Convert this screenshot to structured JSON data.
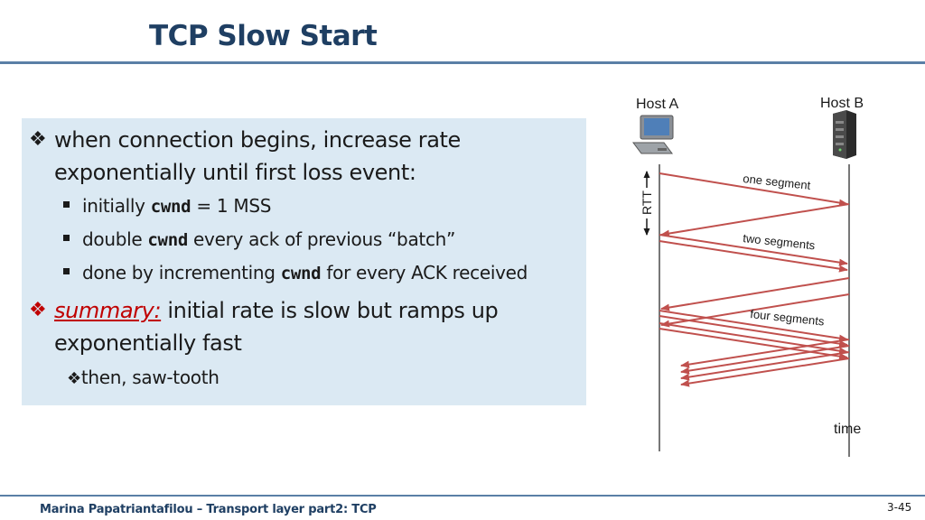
{
  "slide": {
    "title": "TCP Slow Start",
    "footer": "Marina Papatriantafilou –  Transport layer part2: TCP",
    "page_number": "3-45"
  },
  "bullets": {
    "b1_line1": "when connection begins, increase rate",
    "b1_line2": "exponentially until first loss event:",
    "sub1_pre": "initially ",
    "sub1_code": "cwnd",
    "sub1_post": " = 1 MSS",
    "sub2_pre": "double ",
    "sub2_code": "cwnd",
    "sub2_post": " every ack of previous “batch”",
    "sub3_pre": "done by incrementing ",
    "sub3_code": "cwnd",
    "sub3_post": " for every ACK received",
    "b2_label": "summary:",
    "b2_line1": " initial rate is slow but ramps up",
    "b2_line2": "exponentially fast",
    "b3": "then, saw-tooth"
  },
  "diagram": {
    "host_a": "Host A",
    "host_b": "Host B",
    "rtt_label": "RTT",
    "one_segment": "one segment",
    "two_segments": "two segments",
    "four_segments": "four segments",
    "time_label": "time",
    "arrow_color": "#c0504d",
    "icons": [
      "desktop-computer-icon",
      "server-icon"
    ]
  }
}
